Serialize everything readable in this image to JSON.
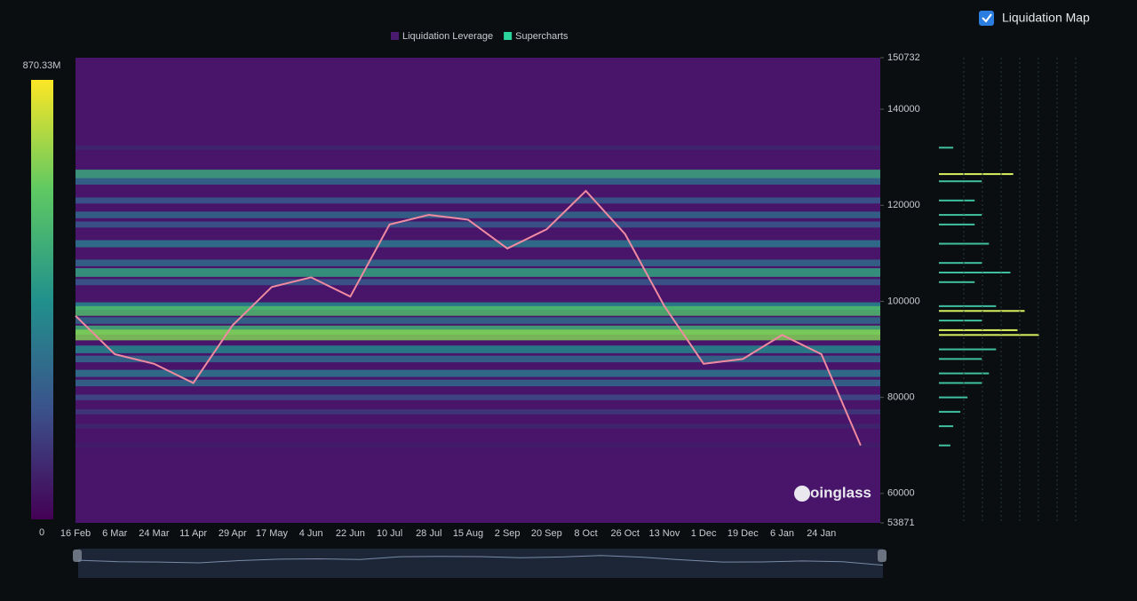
{
  "chart_data": {
    "type": "liquidation-heatmap",
    "legend": [
      {
        "name": "Liquidation Leverage",
        "color": "#4a1a6e"
      },
      {
        "name": "Supercharts",
        "color": "#2ad49a"
      }
    ],
    "toggle": {
      "label": "Liquidation Map",
      "checked": true
    },
    "watermark": "coinglass",
    "categories": [
      "16 Feb",
      "6 Mar",
      "24 Mar",
      "11 Apr",
      "29 Apr",
      "17 May",
      "4 Jun",
      "22 Jun",
      "10 Jul",
      "28 Jul",
      "15 Aug",
      "2 Sep",
      "20 Sep",
      "8 Oct",
      "26 Oct",
      "13 Nov",
      "1 Dec",
      "19 Dec",
      "6 Jan",
      "24 Jan",
      null
    ],
    "series": [
      {
        "name": "Price",
        "color": "#f08aa0",
        "values": [
          97000,
          89000,
          87000,
          83000,
          95000,
          103000,
          105000,
          101000,
          116000,
          118000,
          117000,
          111000,
          115000,
          123000,
          114000,
          99000,
          87000,
          88000,
          93000,
          89000,
          70000
        ]
      }
    ],
    "bands": {
      "prices": [
        132000,
        126500,
        125000,
        121000,
        118000,
        116000,
        112000,
        108000,
        106000,
        104000,
        99000,
        98000,
        96000,
        94000,
        93000,
        90000,
        88000,
        85000,
        83000,
        80000,
        77000,
        74000,
        70000
      ],
      "values": [
        100,
        520,
        300,
        250,
        300,
        250,
        350,
        300,
        500,
        250,
        400,
        600,
        300,
        550,
        700,
        400,
        300,
        350,
        300,
        200,
        150,
        100,
        80
      ]
    },
    "ylim": [
      53871,
      150732
    ],
    "yticks": [
      53871,
      60000,
      80000,
      100000,
      120000,
      140000,
      150732
    ],
    "zlim": [
      0,
      870.33
    ],
    "zticks": [
      0,
      {
        "value": 870.33,
        "label": "870.33M"
      }
    ],
    "colorscale": [
      "#440154",
      "#3b528b",
      "#21918c",
      "#5ec962",
      "#fde725"
    ]
  }
}
